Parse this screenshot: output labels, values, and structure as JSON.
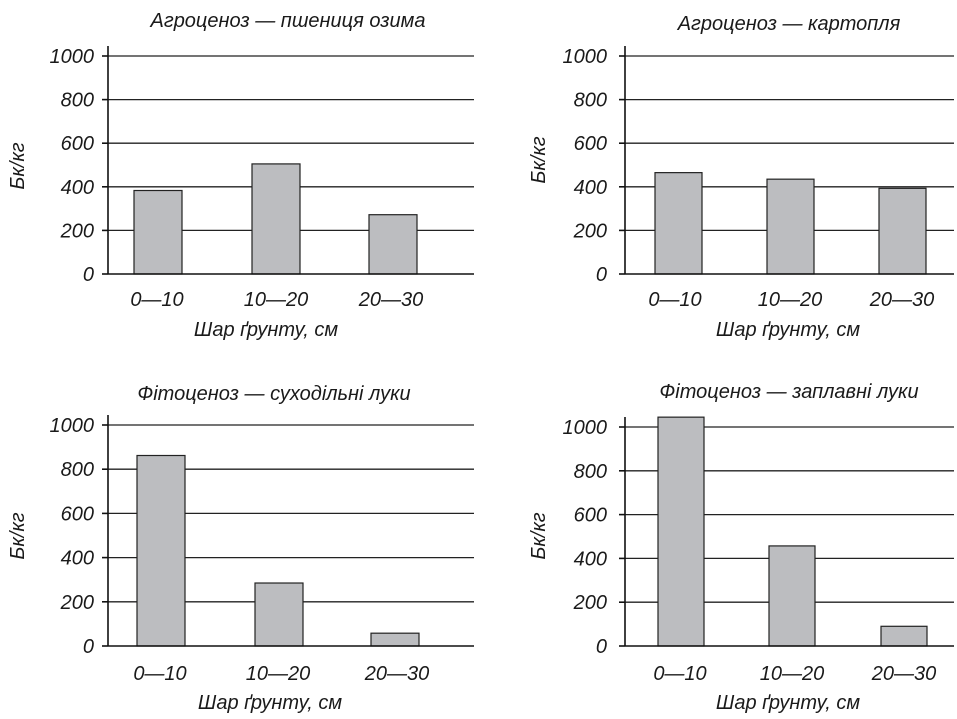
{
  "chart_data": [
    {
      "type": "bar",
      "title": "Агроценоз — пшениця озима",
      "xlabel": "Шар ґрунту, см",
      "ylabel": "Бк/кг",
      "categories": [
        "0—10",
        "10—20",
        "20—30"
      ],
      "values": [
        383,
        505,
        272
      ],
      "ylim": [
        0,
        1000
      ],
      "yticks": [
        0,
        200,
        400,
        600,
        800,
        1000
      ],
      "grid": true
    },
    {
      "type": "bar",
      "title": "Агроценоз — картопля",
      "xlabel": "Шар ґрунту, см",
      "ylabel": "Бк/кг",
      "categories": [
        "0—10",
        "10—20",
        "20—30"
      ],
      "values": [
        465,
        435,
        393
      ],
      "ylim": [
        0,
        1000
      ],
      "yticks": [
        0,
        200,
        400,
        600,
        800,
        1000
      ],
      "grid": true
    },
    {
      "type": "bar",
      "title": "Фітоценоз — суходільні луки",
      "xlabel": "Шар ґрунту, см",
      "ylabel": "Бк/кг",
      "categories": [
        "0—10",
        "10—20",
        "20—30"
      ],
      "values": [
        862,
        285,
        58
      ],
      "ylim": [
        0,
        1000
      ],
      "yticks": [
        0,
        200,
        400,
        600,
        800,
        1000
      ],
      "grid": true
    },
    {
      "type": "bar",
      "title": "Фітоценоз —  заплавні луки",
      "xlabel": "Шар ґрунту, см",
      "ylabel": "Бк/кг",
      "categories": [
        "0—10",
        "10—20",
        "20—30"
      ],
      "values": [
        1045,
        457,
        90
      ],
      "ylim": [
        0,
        1000
      ],
      "yticks": [
        0,
        200,
        400,
        600,
        800,
        1000
      ],
      "grid": true
    }
  ],
  "colors": {
    "bar_fill": "#bcbdc0",
    "bar_stroke": "#222222",
    "line": "#222222",
    "text": "#1a1a1a"
  }
}
